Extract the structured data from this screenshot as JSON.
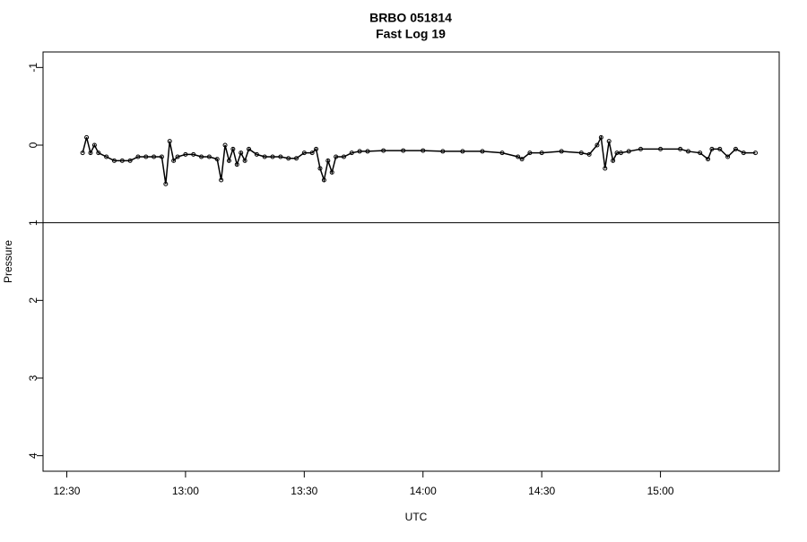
{
  "chart_data": {
    "type": "line",
    "title": "BRBO 051814",
    "subtitle": "Fast Log 19",
    "x_label": "UTC",
    "y_label": "Pressure",
    "x": [
      "12:34",
      "12:35",
      "12:36",
      "12:37",
      "12:38",
      "12:40",
      "12:42",
      "12:44",
      "12:46",
      "12:48",
      "12:50",
      "12:52",
      "12:54",
      "12:55",
      "12:56",
      "12:57",
      "12:58",
      "13:00",
      "13:02",
      "13:04",
      "13:06",
      "13:08",
      "13:09",
      "13:10",
      "13:11",
      "13:12",
      "13:13",
      "13:14",
      "13:15",
      "13:16",
      "13:18",
      "13:20",
      "13:22",
      "13:24",
      "13:26",
      "13:28",
      "13:30",
      "13:32",
      "13:33",
      "13:34",
      "13:35",
      "13:36",
      "13:37",
      "13:38",
      "13:40",
      "13:42",
      "13:44",
      "13:46",
      "13:50",
      "13:55",
      "14:00",
      "14:05",
      "14:10",
      "14:15",
      "14:20",
      "14:24",
      "14:25",
      "14:27",
      "14:30",
      "14:35",
      "14:40",
      "14:42",
      "14:44",
      "14:45",
      "14:46",
      "14:47",
      "14:48",
      "14:49",
      "14:50",
      "14:52",
      "14:55",
      "15:00",
      "15:05",
      "15:07",
      "15:10",
      "15:12",
      "15:13",
      "15:15",
      "15:17",
      "15:19",
      "15:21",
      "15:24"
    ],
    "series": [
      {
        "name": "Pressure",
        "color": "#000000",
        "values": [
          0.1,
          -0.1,
          0.1,
          0.0,
          0.1,
          0.15,
          0.2,
          0.2,
          0.2,
          0.15,
          0.15,
          0.15,
          0.15,
          0.5,
          -0.05,
          0.2,
          0.15,
          0.12,
          0.12,
          0.15,
          0.15,
          0.18,
          0.45,
          0.0,
          0.2,
          0.05,
          0.25,
          0.1,
          0.2,
          0.05,
          0.12,
          0.15,
          0.15,
          0.15,
          0.17,
          0.17,
          0.1,
          0.1,
          0.05,
          0.3,
          0.45,
          0.2,
          0.35,
          0.15,
          0.15,
          0.1,
          0.08,
          0.08,
          0.07,
          0.07,
          0.07,
          0.08,
          0.08,
          0.08,
          0.1,
          0.15,
          0.18,
          0.1,
          0.1,
          0.08,
          0.1,
          0.12,
          0.0,
          -0.1,
          0.3,
          -0.05,
          0.2,
          0.1,
          0.1,
          0.08,
          0.05,
          0.05,
          0.05,
          0.08,
          0.1,
          0.18,
          0.05,
          0.05,
          0.15,
          0.05,
          0.1,
          0.1
        ]
      }
    ],
    "xlim": [
      "12:24",
      "15:30"
    ],
    "xticks": [
      "12:30",
      "13:00",
      "13:30",
      "14:00",
      "14:30",
      "15:00"
    ],
    "ylim": [
      -1.2,
      4.2
    ],
    "yticks": [
      -1,
      0,
      1,
      2,
      3,
      4
    ],
    "y_inverted": true,
    "hline": 1,
    "points": true
  }
}
